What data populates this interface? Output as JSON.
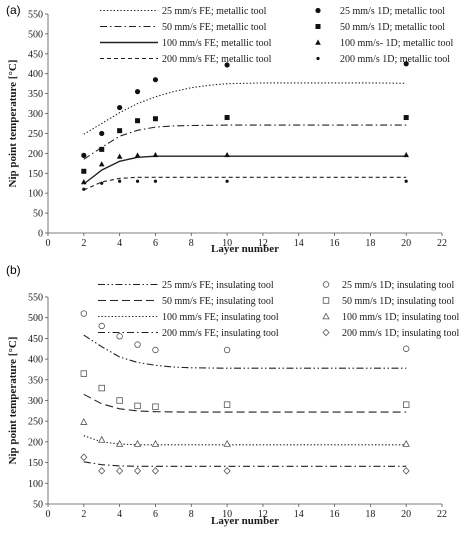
{
  "chart_data": [
    {
      "panel_label": "(a)",
      "type": "line",
      "xlabel": "Layer number",
      "ylabel": "Nip point temperature [°C]",
      "xlim": [
        0,
        22
      ],
      "ylim": [
        0,
        550
      ],
      "xticks": [
        "0",
        "2",
        "4",
        "6",
        "8",
        "10",
        "12",
        "14",
        "16",
        "18",
        "20",
        "22"
      ],
      "yticks": [
        "0",
        "50",
        "100",
        "150",
        "200",
        "250",
        "300",
        "350",
        "400",
        "450",
        "500",
        "550"
      ],
      "legend_position": "top-right",
      "grid": false,
      "series": [
        {
          "name": "25 mm/s FE; metallic tool",
          "kind": "line",
          "style": "dotted",
          "x": [
            2,
            3,
            4,
            5,
            6,
            7,
            8,
            9,
            10,
            12,
            14,
            16,
            18,
            20
          ],
          "y": [
            248,
            275,
            302,
            325,
            342,
            355,
            365,
            371,
            375,
            377,
            377,
            377,
            377,
            376
          ]
        },
        {
          "name": "50 mm/s FE; metallic tool",
          "kind": "line",
          "style": "dashdot",
          "x": [
            2,
            3,
            4,
            5,
            6,
            7,
            8,
            10,
            12,
            14,
            16,
            18,
            20
          ],
          "y": [
            185,
            215,
            243,
            258,
            266,
            269,
            270,
            271,
            271,
            271,
            271,
            271,
            271
          ]
        },
        {
          "name": "100 mm/s FE; metallic tool",
          "kind": "line",
          "style": "solid",
          "x": [
            2,
            3,
            4,
            5,
            6,
            8,
            10,
            12,
            14,
            16,
            18,
            20
          ],
          "y": [
            123,
            158,
            180,
            190,
            193,
            193,
            193,
            193,
            193,
            193,
            193,
            193
          ]
        },
        {
          "name": "200 mm/s FE; metallic tool",
          "kind": "line",
          "style": "dashed",
          "x": [
            2,
            3,
            4,
            5,
            6,
            8,
            10,
            12,
            14,
            16,
            18,
            20
          ],
          "y": [
            108,
            128,
            137,
            140,
            140,
            140,
            140,
            140,
            140,
            140,
            140,
            140
          ]
        },
        {
          "name": "25 mm/s 1D; metallic tool",
          "kind": "marker",
          "marker": "filled-circle",
          "x": [
            2,
            3,
            4,
            5,
            6,
            10,
            20
          ],
          "y": [
            195,
            250,
            315,
            355,
            385,
            422,
            425
          ]
        },
        {
          "name": "50 mm/s 1D; metallic tool",
          "kind": "marker",
          "marker": "filled-square",
          "x": [
            2,
            3,
            4,
            5,
            6,
            10,
            20
          ],
          "y": [
            155,
            210,
            257,
            282,
            287,
            290,
            290
          ]
        },
        {
          "name": "100 mm/s- 1D; metallic tool",
          "kind": "marker",
          "marker": "filled-triangle",
          "x": [
            2,
            3,
            4,
            5,
            6,
            10,
            20
          ],
          "y": [
            128,
            173,
            192,
            195,
            196,
            196,
            196
          ]
        },
        {
          "name": "200 mm/s 1D; metallic tool",
          "kind": "marker",
          "marker": "small-dot",
          "x": [
            2,
            3,
            4,
            5,
            6,
            10,
            20
          ],
          "y": [
            110,
            125,
            130,
            130,
            130,
            130,
            130
          ]
        }
      ]
    },
    {
      "panel_label": "(b)",
      "type": "line",
      "xlabel": "Layer number",
      "ylabel": "Nip point temperature [°C]",
      "xlim": [
        0,
        22
      ],
      "ylim": [
        50,
        550
      ],
      "xticks": [
        "0",
        "2",
        "4",
        "6",
        "8",
        "10",
        "12",
        "14",
        "16",
        "18",
        "20",
        "22"
      ],
      "yticks": [
        "50",
        "100",
        "150",
        "200",
        "250",
        "300",
        "350",
        "400",
        "450",
        "500",
        "550"
      ],
      "legend_position": "top-right",
      "grid": false,
      "series": [
        {
          "name": "25 mm/s FE; insulating tool",
          "kind": "line",
          "style": "dashdotdot",
          "x": [
            2,
            3,
            4,
            5,
            6,
            7,
            8,
            10,
            12,
            14,
            16,
            18,
            20
          ],
          "y": [
            458,
            430,
            405,
            392,
            385,
            381,
            379,
            378,
            378,
            378,
            378,
            378,
            378
          ]
        },
        {
          "name": "50 mm/s FE; insulating tool",
          "kind": "line",
          "style": "longdash",
          "x": [
            2,
            3,
            4,
            5,
            6,
            8,
            10,
            12,
            14,
            16,
            18,
            20
          ],
          "y": [
            315,
            292,
            280,
            275,
            273,
            272,
            272,
            272,
            272,
            272,
            272,
            272
          ]
        },
        {
          "name": "100 mm/s FE; insulating tool",
          "kind": "line",
          "style": "dotted",
          "x": [
            2,
            3,
            4,
            5,
            6,
            8,
            10,
            12,
            14,
            16,
            18,
            20
          ],
          "y": [
            215,
            200,
            195,
            193,
            193,
            193,
            193,
            193,
            193,
            193,
            193,
            193
          ]
        },
        {
          "name": "200 mm/s FE; insulating tool",
          "kind": "line",
          "style": "dashdot",
          "x": [
            2,
            3,
            4,
            5,
            6,
            8,
            10,
            12,
            14,
            16,
            18,
            20
          ],
          "y": [
            152,
            145,
            142,
            141,
            141,
            141,
            141,
            141,
            141,
            141,
            141,
            141
          ]
        },
        {
          "name": "25 mm/s 1D; insulating tool",
          "kind": "marker",
          "marker": "open-circle",
          "x": [
            2,
            3,
            4,
            5,
            6,
            10,
            20
          ],
          "y": [
            510,
            480,
            455,
            435,
            422,
            422,
            425
          ]
        },
        {
          "name": "50 mm/s 1D; insulating tool",
          "kind": "marker",
          "marker": "open-square",
          "x": [
            2,
            3,
            4,
            5,
            6,
            10,
            20
          ],
          "y": [
            365,
            330,
            300,
            287,
            285,
            290,
            290
          ]
        },
        {
          "name": "100 mm/s 1D; insulating tool",
          "kind": "marker",
          "marker": "open-triangle",
          "x": [
            2,
            3,
            4,
            5,
            6,
            10,
            20
          ],
          "y": [
            248,
            205,
            195,
            195,
            195,
            195,
            195
          ]
        },
        {
          "name": "200 mm/s 1D; insulating tool",
          "kind": "marker",
          "marker": "open-diamond",
          "x": [
            2,
            3,
            4,
            5,
            6,
            10,
            20
          ],
          "y": [
            163,
            130,
            130,
            130,
            130,
            130,
            130
          ]
        }
      ]
    }
  ]
}
